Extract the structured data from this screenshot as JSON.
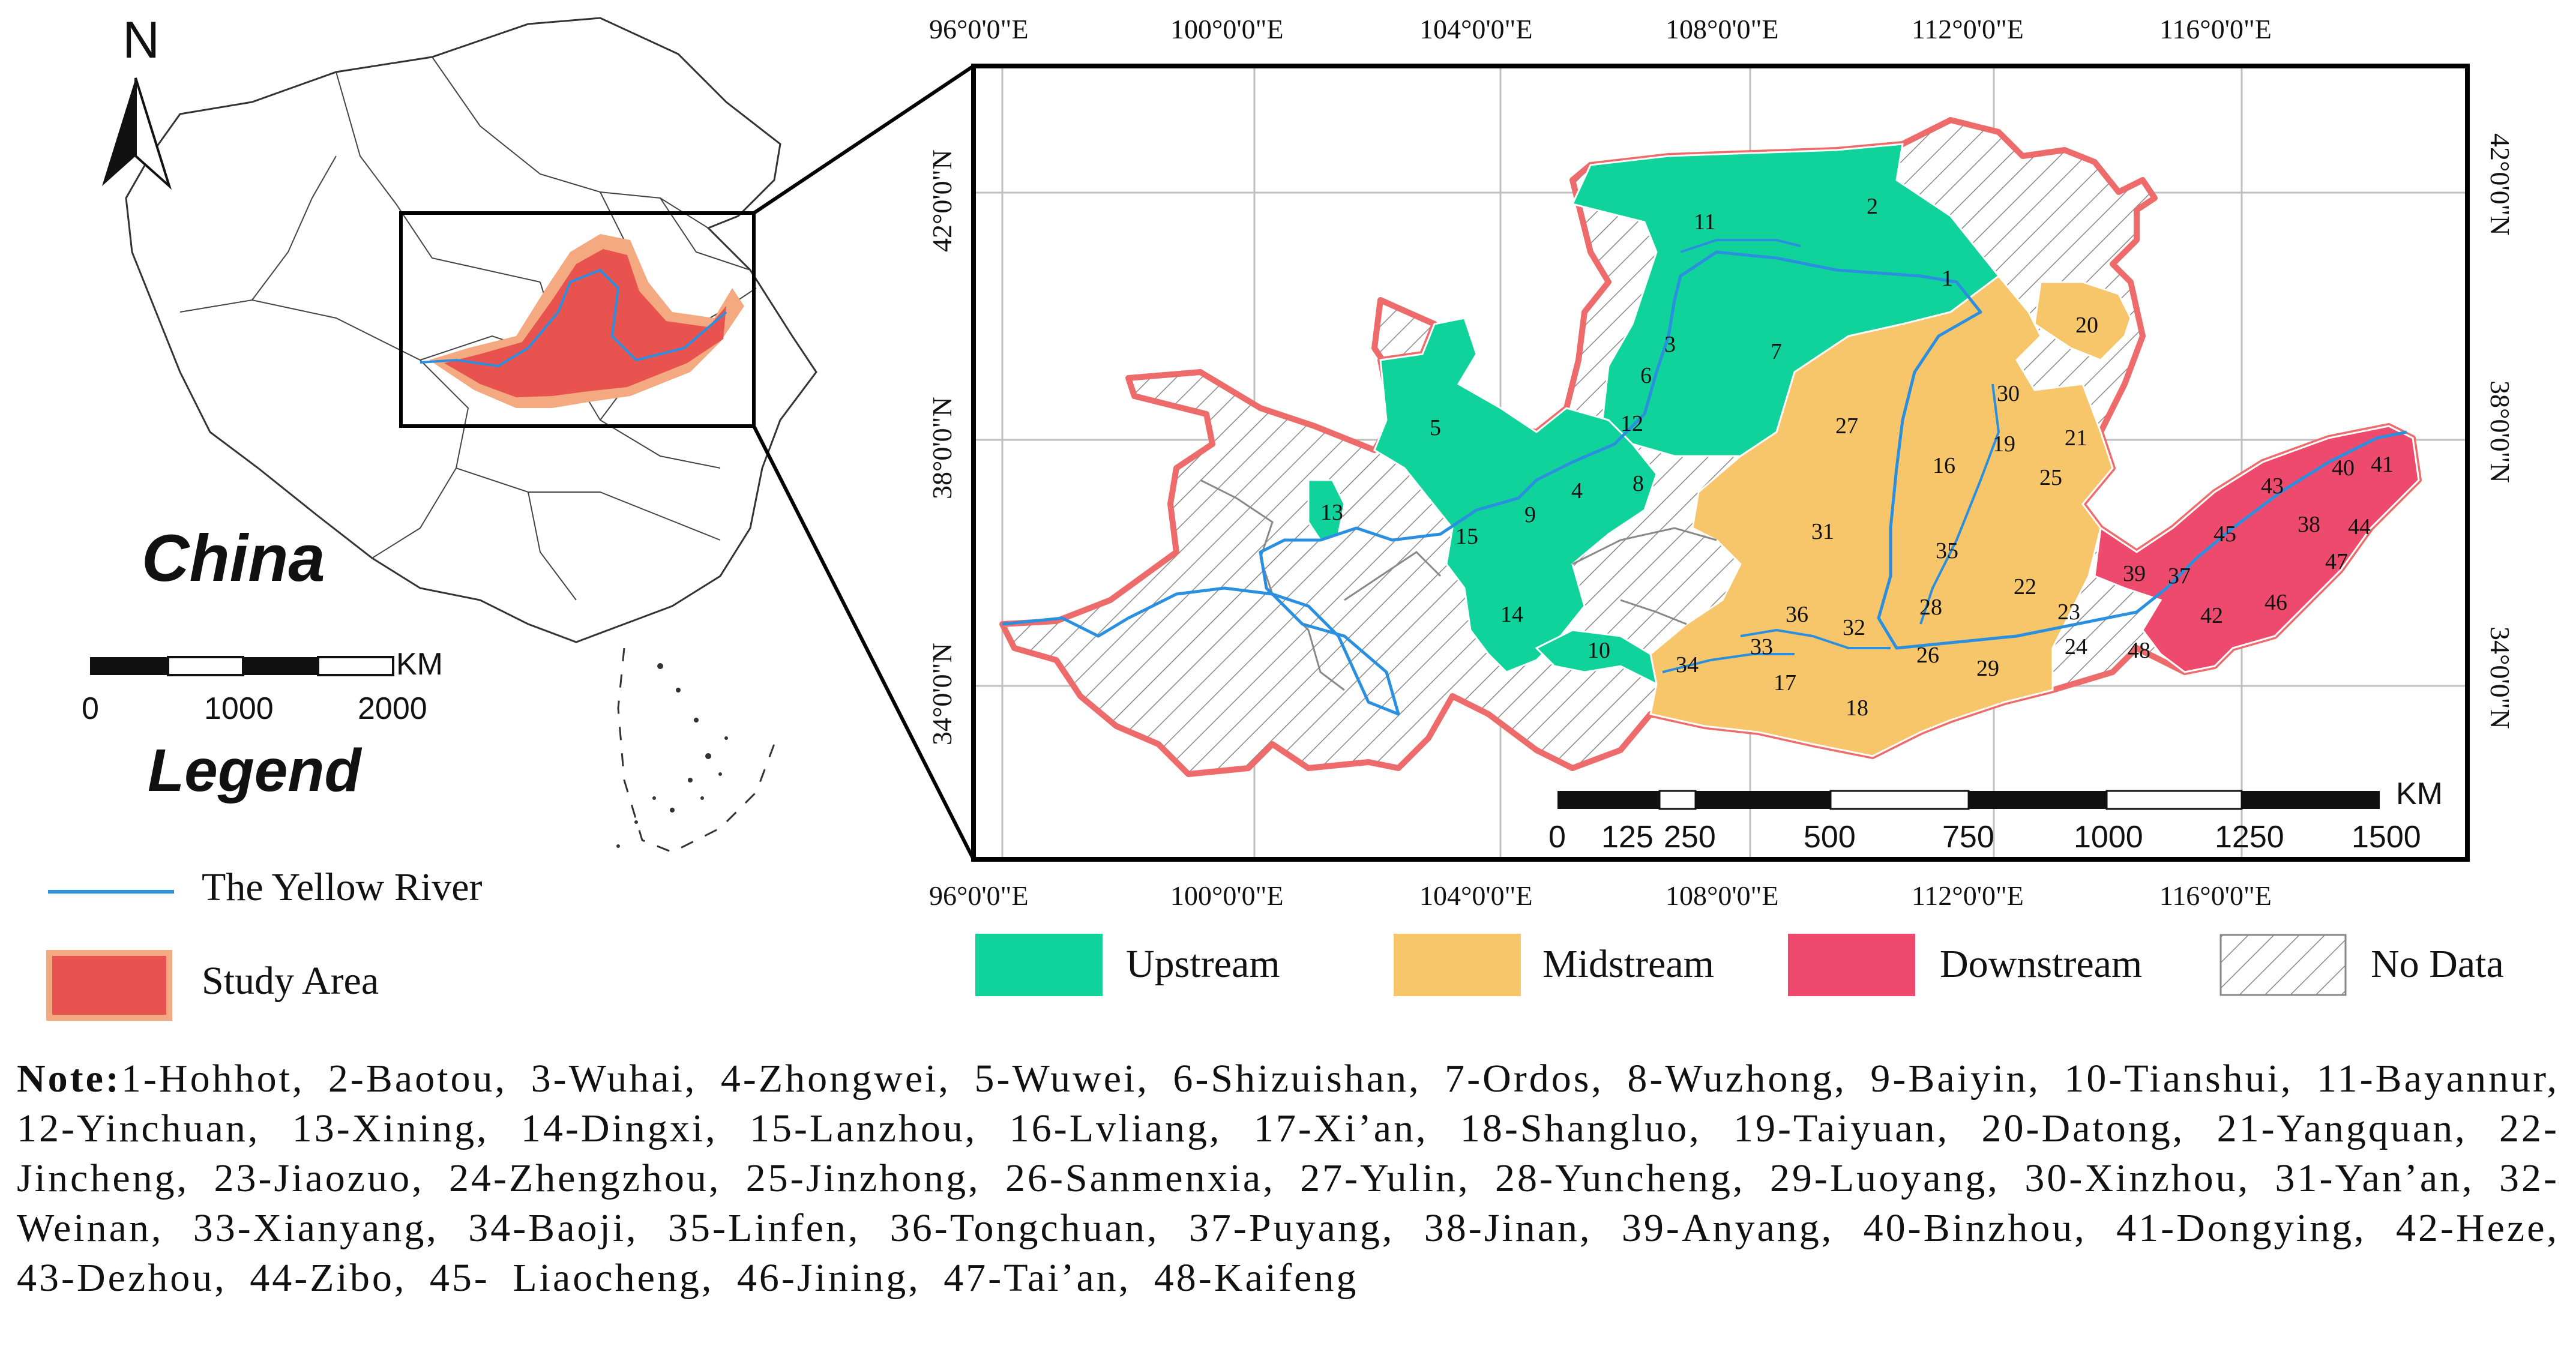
{
  "inset": {
    "north_label": "N",
    "country_label": "China",
    "scale": {
      "unit": "KM",
      "ticks": [
        "0",
        "1000",
        "2000"
      ]
    }
  },
  "legend": {
    "title": "Legend",
    "items": [
      {
        "id": "river",
        "label": "The Yellow River",
        "color": "#2b8fe0"
      },
      {
        "id": "study",
        "label": "Study Area",
        "color": "#e8534f"
      }
    ]
  },
  "main_map": {
    "lon_labels": [
      "96°0'0\"E",
      "100°0'0\"E",
      "104°0'0\"E",
      "108°0'0\"E",
      "112°0'0\"E",
      "116°0'0\"E"
    ],
    "lat_labels": [
      "42°0'0\"N",
      "38°0'0\"N",
      "34°0'0\"N"
    ],
    "scale": {
      "unit": "KM",
      "ticks": [
        "0",
        "125",
        "250",
        "500",
        "750",
        "1000",
        "1250",
        "1500"
      ]
    },
    "regions": [
      {
        "num": "1",
        "stream": "upstream"
      },
      {
        "num": "2",
        "stream": "upstream"
      },
      {
        "num": "3",
        "stream": "upstream"
      },
      {
        "num": "4",
        "stream": "upstream"
      },
      {
        "num": "5",
        "stream": "upstream"
      },
      {
        "num": "6",
        "stream": "upstream"
      },
      {
        "num": "7",
        "stream": "upstream"
      },
      {
        "num": "8",
        "stream": "upstream"
      },
      {
        "num": "9",
        "stream": "upstream"
      },
      {
        "num": "10",
        "stream": "upstream"
      },
      {
        "num": "11",
        "stream": "upstream"
      },
      {
        "num": "12",
        "stream": "upstream"
      },
      {
        "num": "13",
        "stream": "upstream"
      },
      {
        "num": "14",
        "stream": "upstream"
      },
      {
        "num": "15",
        "stream": "upstream"
      },
      {
        "num": "16",
        "stream": "midstream"
      },
      {
        "num": "17",
        "stream": "midstream"
      },
      {
        "num": "18",
        "stream": "midstream"
      },
      {
        "num": "19",
        "stream": "midstream"
      },
      {
        "num": "20",
        "stream": "midstream"
      },
      {
        "num": "21",
        "stream": "midstream"
      },
      {
        "num": "22",
        "stream": "midstream"
      },
      {
        "num": "23",
        "stream": "midstream"
      },
      {
        "num": "24",
        "stream": "midstream"
      },
      {
        "num": "25",
        "stream": "midstream"
      },
      {
        "num": "26",
        "stream": "midstream"
      },
      {
        "num": "27",
        "stream": "midstream"
      },
      {
        "num": "28",
        "stream": "midstream"
      },
      {
        "num": "29",
        "stream": "midstream"
      },
      {
        "num": "30",
        "stream": "midstream"
      },
      {
        "num": "31",
        "stream": "midstream"
      },
      {
        "num": "32",
        "stream": "midstream"
      },
      {
        "num": "33",
        "stream": "midstream"
      },
      {
        "num": "34",
        "stream": "midstream"
      },
      {
        "num": "35",
        "stream": "midstream"
      },
      {
        "num": "36",
        "stream": "midstream"
      },
      {
        "num": "37",
        "stream": "downstream"
      },
      {
        "num": "38",
        "stream": "downstream"
      },
      {
        "num": "39",
        "stream": "downstream"
      },
      {
        "num": "40",
        "stream": "downstream"
      },
      {
        "num": "41",
        "stream": "downstream"
      },
      {
        "num": "42",
        "stream": "downstream"
      },
      {
        "num": "43",
        "stream": "downstream"
      },
      {
        "num": "44",
        "stream": "downstream"
      },
      {
        "num": "45",
        "stream": "downstream"
      },
      {
        "num": "46",
        "stream": "downstream"
      },
      {
        "num": "47",
        "stream": "downstream"
      },
      {
        "num": "48",
        "stream": "downstream"
      }
    ]
  },
  "stream_legend": [
    {
      "id": "upstream",
      "label": "Upstream",
      "color": "#0fd39a"
    },
    {
      "id": "midstream",
      "label": "Midstream",
      "color": "#f7c56a"
    },
    {
      "id": "downstream",
      "label": "Downstream",
      "color": "#ee4a6e"
    },
    {
      "id": "nodata",
      "label": "No Data",
      "color": "#ffffff"
    }
  ],
  "note": {
    "prefix": "Note:",
    "text": "1-Hohhot, 2-Baotou, 3-Wuhai, 4-Zhongwei, 5-Wuwei, 6-Shizuishan, 7-Ordos, 8-Wuzhong, 9-Baiyin, 10-Tianshui, 11-Bayannur, 12-Yinchuan, 13-Xining, 14-Dingxi, 15-Lanzhou, 16-Lvliang, 17-Xi’an, 18-Shangluo, 19-Taiyuan, 20-Datong, 21-Yangquan, 22-Jincheng, 23-Jiaozuo, 24-Zhengzhou, 25-Jinzhong, 26-Sanmenxia, 27-Yulin, 28-Yuncheng, 29-Luoyang, 30-Xinzhou, 31-Yan’an, 32-Weinan, 33-Xianyang, 34-Baoji, 35-Linfen, 36-Tongchuan, 37-Puyang, 38-Jinan, 39-Anyang, 40-Binzhou, 41-Dongying, 42-Heze, 43-Dezhou, 44-Zibo, 45- Liaocheng, 46-Jining, 47-Tai’an, 48-Kaifeng"
  }
}
